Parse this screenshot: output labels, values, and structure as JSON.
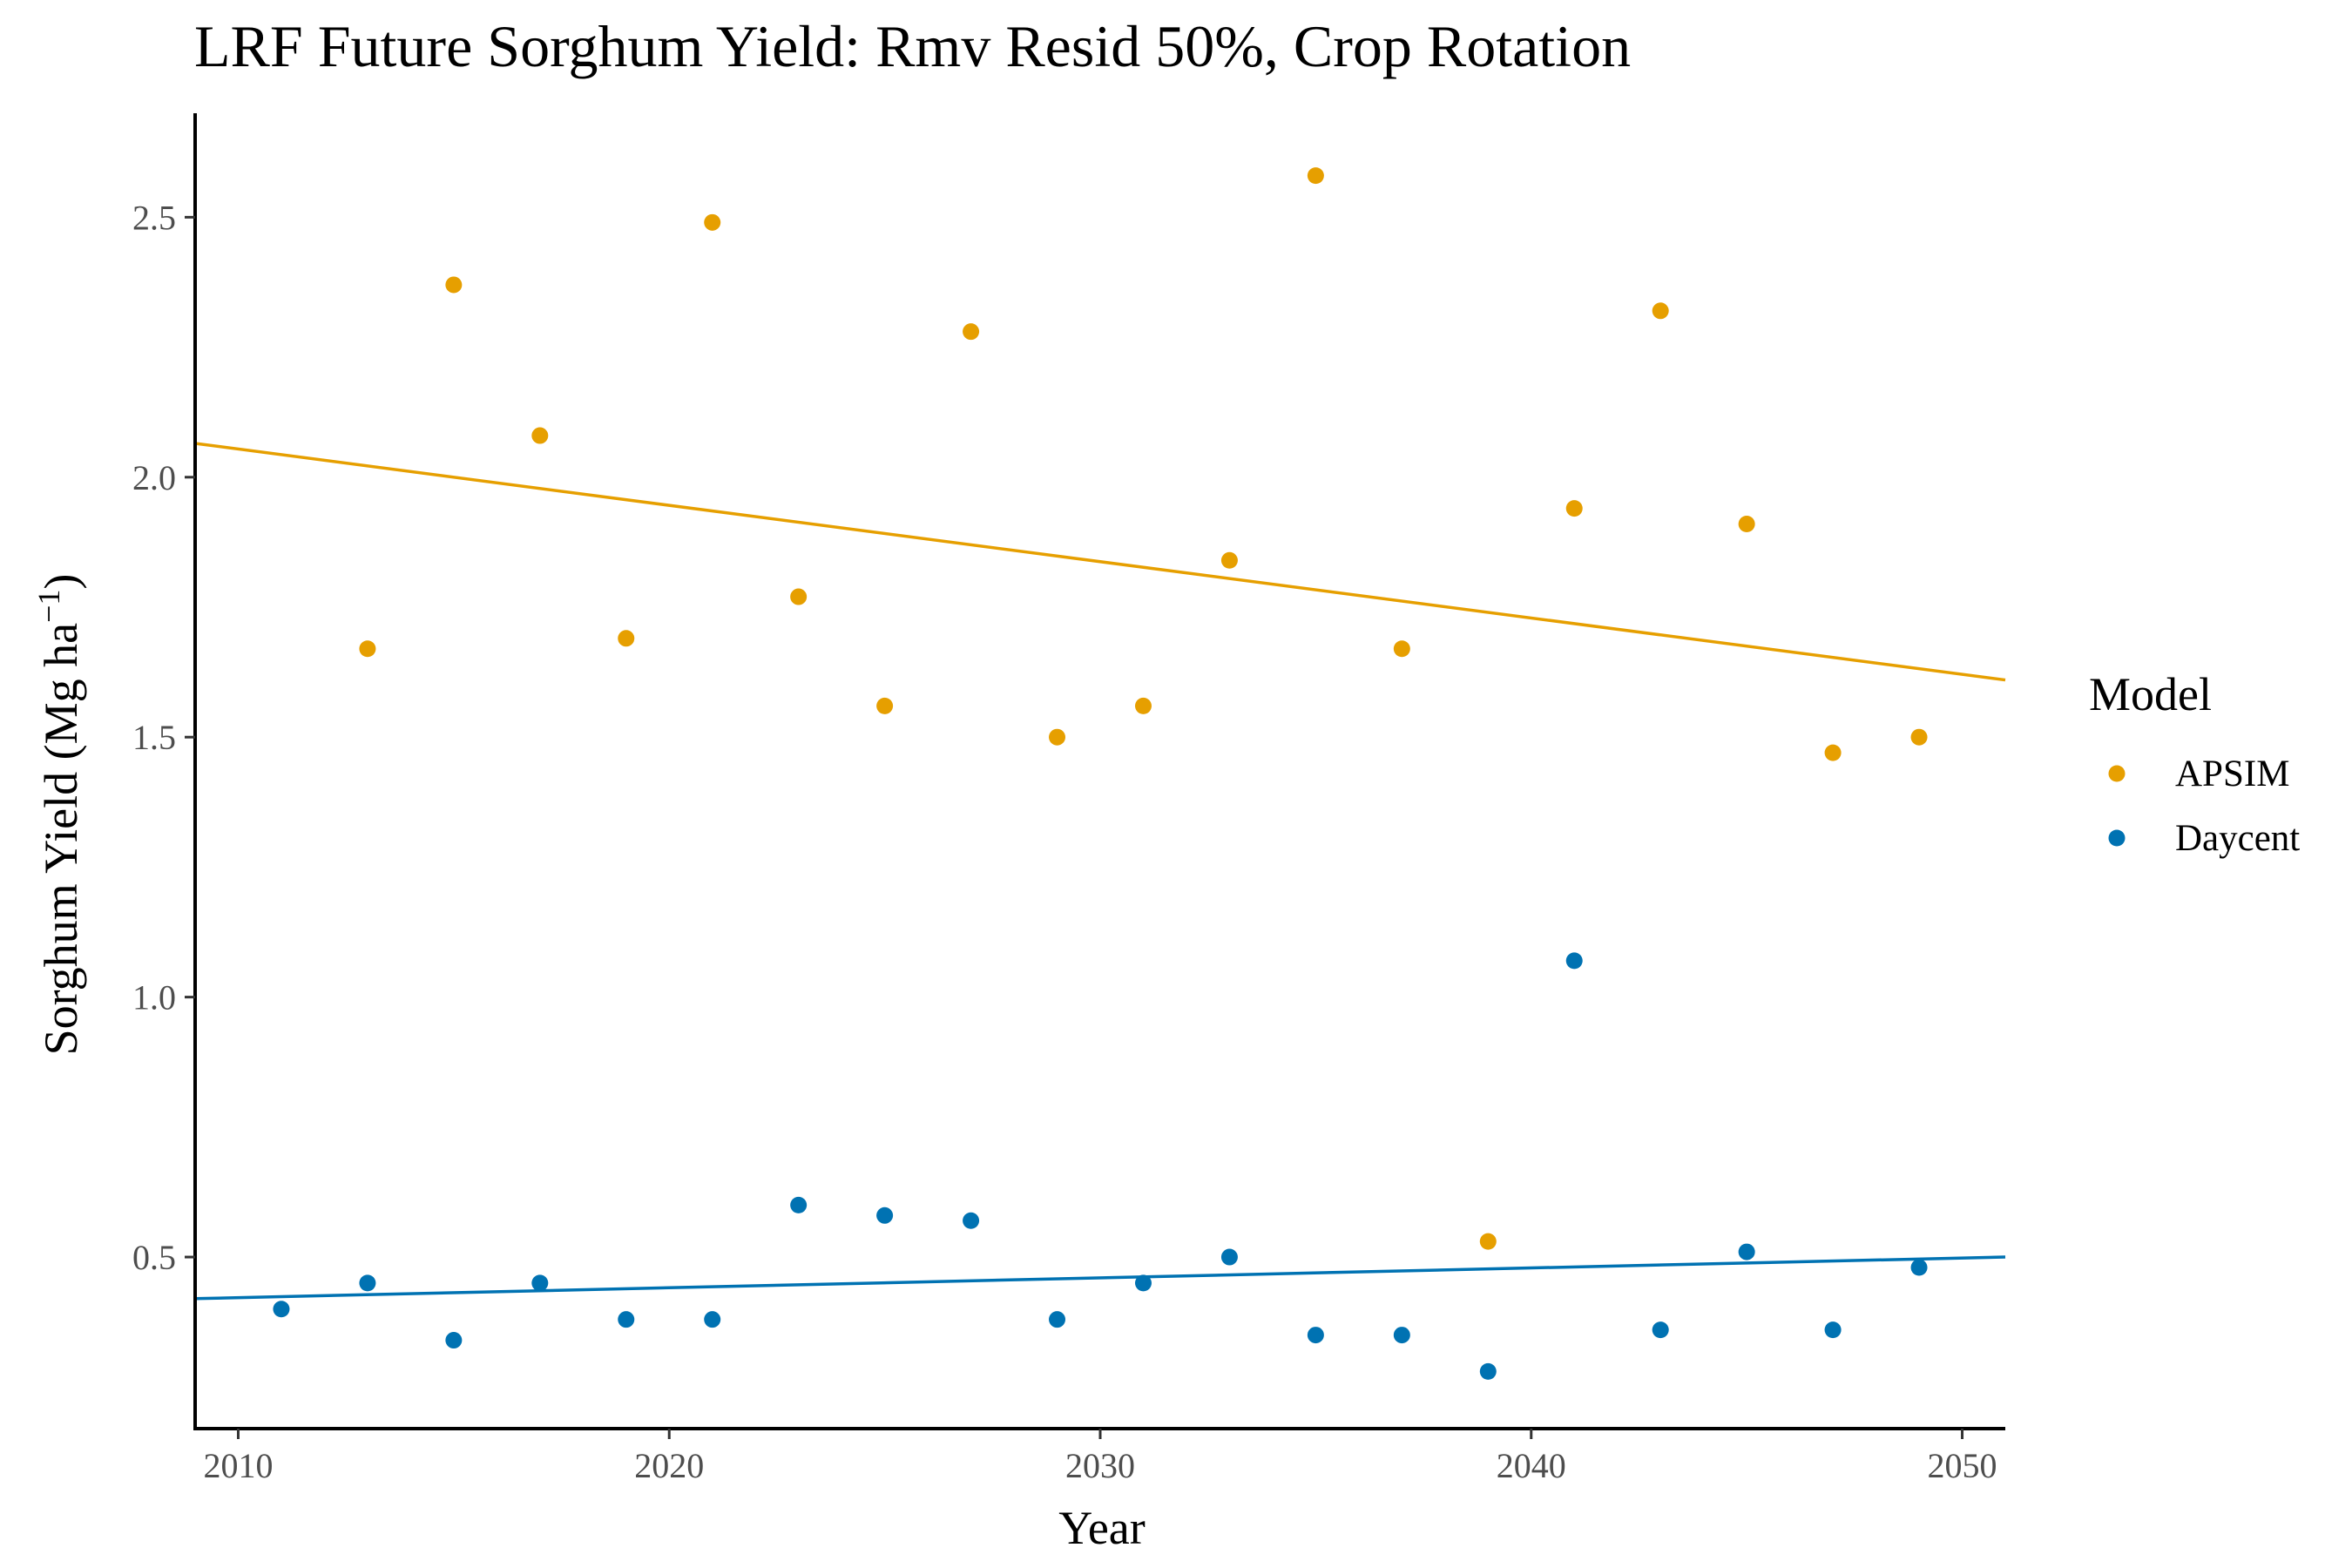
{
  "chart_data": {
    "type": "scatter",
    "title": "LRF Future Sorghum Yield:  Rmv Resid 50%, Crop Rotation",
    "xlabel": "Year",
    "ylabel": "Sorghum Yield (Mg ha",
    "ylabel_superscript": "−1",
    "ylabel_close": ")",
    "xlim": [
      2009,
      2051
    ],
    "ylim": [
      0.17,
      2.7
    ],
    "xticks": [
      2010,
      2020,
      2030,
      2040,
      2050
    ],
    "yticks": [
      0.5,
      1.0,
      1.5,
      2.0,
      2.5
    ],
    "ytick_labels": [
      "0.5",
      "1.0",
      "1.5",
      "2.0",
      "2.5"
    ],
    "grid": false,
    "legend": {
      "title": "Model",
      "placement": "right"
    },
    "series": [
      {
        "name": "APSIM",
        "color": "#E69F00",
        "x": [
          2013,
          2015,
          2017,
          2019,
          2021,
          2023,
          2025,
          2027,
          2029,
          2031,
          2033,
          2035,
          2037,
          2039,
          2041,
          2043,
          2045,
          2047,
          2049
        ],
        "y": [
          1.67,
          2.37,
          2.08,
          1.69,
          2.49,
          1.77,
          1.56,
          2.28,
          1.5,
          1.56,
          1.84,
          2.58,
          1.67,
          0.53,
          1.94,
          2.32,
          1.91,
          1.47,
          1.5
        ],
        "trend": {
          "x": [
            2009,
            2051
          ],
          "y": [
            2.065,
            1.61
          ]
        }
      },
      {
        "name": "Daycent",
        "color": "#0072B2",
        "x": [
          2011,
          2013,
          2015,
          2017,
          2019,
          2021,
          2023,
          2025,
          2027,
          2029,
          2031,
          2033,
          2035,
          2037,
          2039,
          2041,
          2043,
          2045,
          2047,
          2049
        ],
        "y": [
          0.4,
          0.45,
          0.34,
          0.45,
          0.38,
          0.38,
          0.6,
          0.58,
          0.57,
          0.38,
          0.45,
          0.5,
          0.35,
          0.35,
          0.28,
          1.07,
          0.36,
          0.51,
          0.36,
          0.48
        ],
        "trend": {
          "x": [
            2009,
            2051
          ],
          "y": [
            0.42,
            0.5
          ]
        }
      }
    ]
  }
}
